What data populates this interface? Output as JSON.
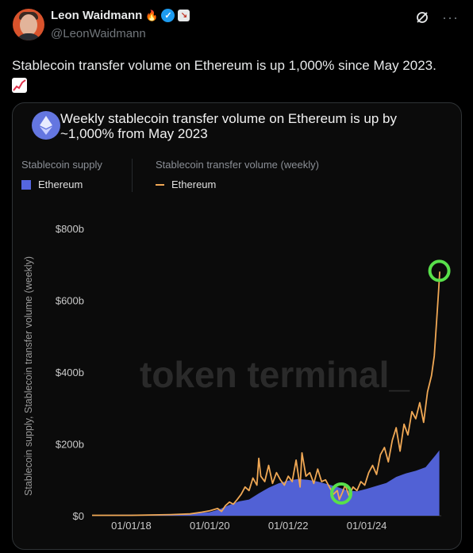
{
  "tweet": {
    "author_name": "Leon Waidmann",
    "handle": "@LeonWaidmann",
    "text": "Stablecoin transfer volume on Ethereum is up 1,000% since May 2023.",
    "emoji": "chart-increasing-emoji"
  },
  "card": {
    "title": "Weekly stablecoin transfer volume on Ethereum is up by ~1,000% from May 2023",
    "legend": {
      "supply_header": "Stablecoin supply",
      "supply_item": "Ethereum",
      "volume_header": "Stablecoin transfer volume (weekly)",
      "volume_item": "Ethereum"
    },
    "watermark": "token terminal_"
  },
  "colors": {
    "supply": "#5566e0",
    "volume": "#f0a855",
    "highlight": "#58e04b"
  },
  "chart_data": {
    "type": "area",
    "ylabel": "Stablecoin supply, Stablecoin transfer volume (weekly)",
    "yticks": [
      "$0",
      "$200b",
      "$400b",
      "$600b",
      "$800b"
    ],
    "xticks": [
      "01/01/18",
      "01/01/20",
      "01/01/22",
      "01/01/24"
    ],
    "ylim": [
      0,
      800
    ],
    "x_is_year": true,
    "series": [
      {
        "name": "Stablecoin supply",
        "type": "area",
        "points": [
          [
            2017.0,
            2
          ],
          [
            2018.0,
            3
          ],
          [
            2019.0,
            4
          ],
          [
            2019.5,
            6
          ],
          [
            2020.0,
            10
          ],
          [
            2020.25,
            18
          ],
          [
            2020.5,
            30
          ],
          [
            2020.75,
            40
          ],
          [
            2021.0,
            45
          ],
          [
            2021.25,
            62
          ],
          [
            2021.5,
            78
          ],
          [
            2021.75,
            90
          ],
          [
            2022.0,
            98
          ],
          [
            2022.25,
            102
          ],
          [
            2022.5,
            100
          ],
          [
            2022.75,
            95
          ],
          [
            2023.0,
            88
          ],
          [
            2023.25,
            80
          ],
          [
            2023.5,
            70
          ],
          [
            2023.75,
            68
          ],
          [
            2024.0,
            75
          ],
          [
            2024.25,
            83
          ],
          [
            2024.5,
            91
          ],
          [
            2024.75,
            108
          ],
          [
            2025.0,
            118
          ],
          [
            2025.25,
            125
          ],
          [
            2025.5,
            135
          ],
          [
            2025.75,
            168
          ],
          [
            2025.85,
            182
          ]
        ]
      },
      {
        "name": "Stablecoin transfer volume (weekly)",
        "type": "line",
        "points": [
          [
            2017.0,
            1
          ],
          [
            2018.0,
            1
          ],
          [
            2019.0,
            3
          ],
          [
            2019.5,
            5
          ],
          [
            2019.8,
            10
          ],
          [
            2020.0,
            14
          ],
          [
            2020.2,
            20
          ],
          [
            2020.3,
            12
          ],
          [
            2020.4,
            28
          ],
          [
            2020.5,
            38
          ],
          [
            2020.6,
            32
          ],
          [
            2020.7,
            45
          ],
          [
            2020.8,
            60
          ],
          [
            2020.9,
            80
          ],
          [
            2021.0,
            70
          ],
          [
            2021.1,
            105
          ],
          [
            2021.2,
            85
          ],
          [
            2021.25,
            160
          ],
          [
            2021.3,
            110
          ],
          [
            2021.4,
            95
          ],
          [
            2021.5,
            140
          ],
          [
            2021.6,
            90
          ],
          [
            2021.7,
            120
          ],
          [
            2021.8,
            100
          ],
          [
            2021.9,
            85
          ],
          [
            2022.0,
            110
          ],
          [
            2022.1,
            95
          ],
          [
            2022.2,
            155
          ],
          [
            2022.3,
            80
          ],
          [
            2022.35,
            175
          ],
          [
            2022.45,
            110
          ],
          [
            2022.55,
            120
          ],
          [
            2022.65,
            90
          ],
          [
            2022.75,
            130
          ],
          [
            2022.85,
            95
          ],
          [
            2022.95,
            100
          ],
          [
            2023.05,
            80
          ],
          [
            2023.15,
            60
          ],
          [
            2023.25,
            70
          ],
          [
            2023.3,
            45
          ],
          [
            2023.38,
            65
          ],
          [
            2023.45,
            85
          ],
          [
            2023.55,
            55
          ],
          [
            2023.65,
            80
          ],
          [
            2023.75,
            70
          ],
          [
            2023.85,
            95
          ],
          [
            2023.95,
            85
          ],
          [
            2024.05,
            120
          ],
          [
            2024.15,
            140
          ],
          [
            2024.25,
            115
          ],
          [
            2024.35,
            170
          ],
          [
            2024.45,
            190
          ],
          [
            2024.55,
            150
          ],
          [
            2024.65,
            210
          ],
          [
            2024.75,
            245
          ],
          [
            2024.85,
            180
          ],
          [
            2024.95,
            255
          ],
          [
            2025.05,
            225
          ],
          [
            2025.15,
            290
          ],
          [
            2025.25,
            270
          ],
          [
            2025.35,
            315
          ],
          [
            2025.45,
            260
          ],
          [
            2025.55,
            345
          ],
          [
            2025.65,
            390
          ],
          [
            2025.72,
            445
          ],
          [
            2025.78,
            540
          ],
          [
            2025.83,
            625
          ],
          [
            2025.86,
            680
          ]
        ]
      }
    ],
    "highlights": [
      [
        2023.35,
        62
      ],
      [
        2025.85,
        682
      ]
    ]
  }
}
